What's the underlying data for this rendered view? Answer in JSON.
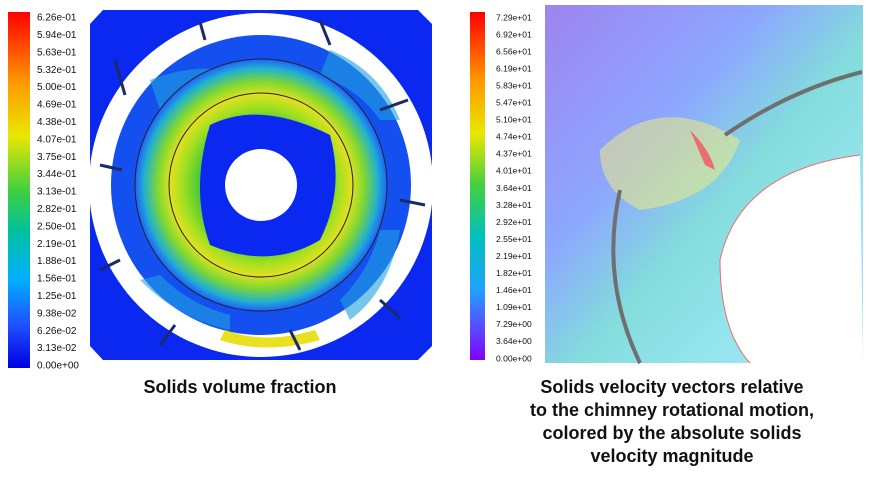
{
  "panels": [
    {
      "colorbar": [
        "6.26e-01",
        "5.94e-01",
        "5.63e-01",
        "5.32e-01",
        "5.00e-01",
        "4.69e-01",
        "4.38e-01",
        "4.07e-01",
        "3.75e-01",
        "3.44e-01",
        "3.13e-01",
        "2.82e-01",
        "2.50e-01",
        "2.19e-01",
        "1.88e-01",
        "1.56e-01",
        "1.25e-01",
        "9.38e-02",
        "6.26e-02",
        "3.13e-02",
        "0.00e+00"
      ],
      "caption": [
        "Solids volume fraction"
      ]
    },
    {
      "colorbar": [
        "7.29e+01",
        "6.92e+01",
        "6.56e+01",
        "6.19e+01",
        "5.83e+01",
        "5.47e+01",
        "5.10e+01",
        "4.74e+01",
        "4.37e+01",
        "4.01e+01",
        "3.64e+01",
        "3.28e+01",
        "2.92e+01",
        "2.55e+01",
        "2.19e+01",
        "1.82e+01",
        "1.46e+01",
        "1.09e+01",
        "7.29e+00",
        "3.64e+00",
        "0.00e+00"
      ],
      "caption": [
        "Solids velocity vectors relative",
        "to the chimney rotational motion,",
        "colored by the absolute solids",
        "velocity magnitude"
      ]
    }
  ]
}
